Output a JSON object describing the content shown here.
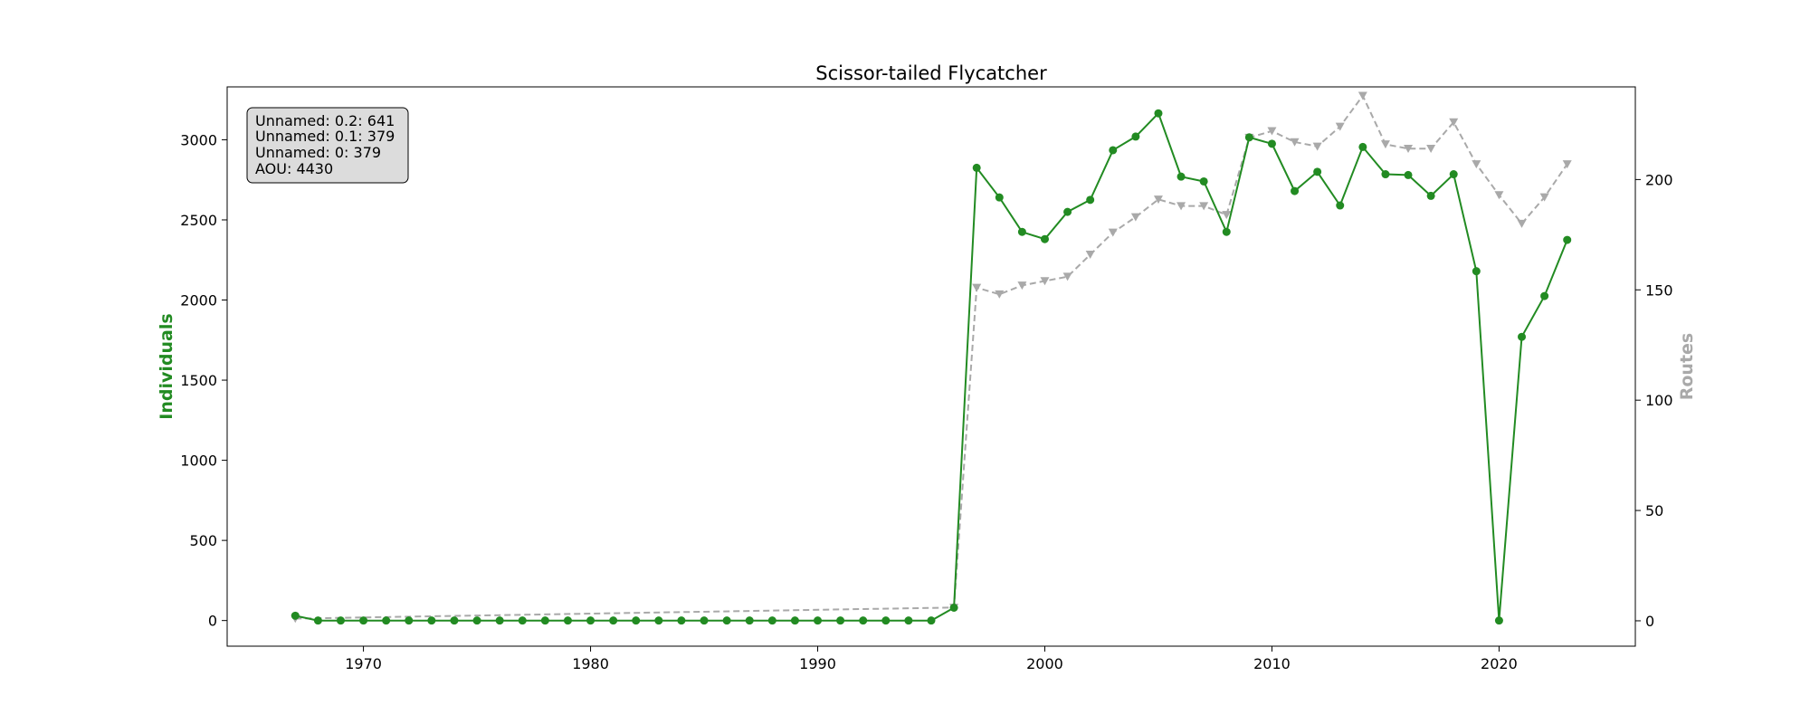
{
  "chart_data": {
    "type": "line",
    "title": "Scissor-tailed Flycatcher",
    "xlabel": "",
    "ylabel": "Individuals",
    "ylabel_right": "Routes",
    "xlim": [
      1964,
      2026
    ],
    "ylim": [
      -160,
      3330
    ],
    "ylim_right": [
      -11.5,
      242
    ],
    "x_ticks": [
      1970,
      1980,
      1990,
      2000,
      2010,
      2020
    ],
    "y_ticks": [
      0,
      500,
      1000,
      1500,
      2000,
      2500,
      3000
    ],
    "y_ticks_right": [
      0,
      50,
      100,
      150,
      200
    ],
    "grid": false,
    "colors": {
      "individuals": "#228b22",
      "routes": "#a9a9a9"
    },
    "info_box": [
      "Unnamed: 0.2: 641",
      "Unnamed: 0.1: 379",
      "Unnamed: 0: 379",
      "AOU: 4430"
    ],
    "series": [
      {
        "axis": "left",
        "marker": "circle",
        "style": "solid",
        "x": [
          1967,
          1968,
          1969,
          1970,
          1971,
          1972,
          1973,
          1974,
          1975,
          1976,
          1977,
          1978,
          1979,
          1980,
          1981,
          1982,
          1983,
          1984,
          1985,
          1986,
          1987,
          1988,
          1989,
          1990,
          1991,
          1992,
          1993,
          1994,
          1995,
          1996,
          1997,
          1998,
          1999,
          2000,
          2001,
          2002,
          2003,
          2004,
          2005,
          2006,
          2007,
          2008,
          2009,
          2010,
          2011,
          2012,
          2013,
          2014,
          2015,
          2016,
          2017,
          2018,
          2019,
          2020,
          2021,
          2022,
          2023
        ],
        "values": [
          30,
          0,
          0,
          0,
          0,
          0,
          0,
          0,
          0,
          0,
          0,
          0,
          0,
          0,
          0,
          0,
          0,
          0,
          0,
          0,
          0,
          0,
          0,
          0,
          0,
          0,
          0,
          0,
          0,
          80,
          2825,
          2640,
          2425,
          2380,
          2550,
          2625,
          2935,
          3020,
          3165,
          2770,
          2740,
          2425,
          3015,
          2975,
          2680,
          2800,
          2590,
          2955,
          2785,
          2780,
          2650,
          2785,
          2180,
          0,
          1770,
          2025,
          2375
        ]
      },
      {
        "axis": "right",
        "marker": "triangle-down",
        "style": "dashed",
        "x": [
          1967,
          1996,
          1997,
          1998,
          1999,
          2000,
          2001,
          2002,
          2003,
          2004,
          2005,
          2006,
          2007,
          2008,
          2009,
          2010,
          2011,
          2012,
          2013,
          2014,
          2015,
          2016,
          2017,
          2018,
          2019,
          2020,
          2021,
          2022,
          2023
        ],
        "values": [
          1,
          6,
          151,
          148,
          152,
          154,
          156,
          166,
          176,
          183,
          191,
          188,
          188,
          184,
          219,
          222,
          217,
          215,
          224,
          238,
          216,
          214,
          214,
          226,
          207,
          193,
          180,
          192,
          207
        ]
      }
    ]
  }
}
